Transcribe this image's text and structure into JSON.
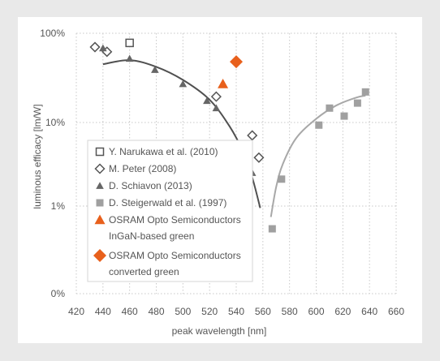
{
  "chart_data": {
    "type": "scatter",
    "xlabel": "peak wavelength [nm]",
    "ylabel": "luminous efficacy [lm/W]",
    "xlim": [
      420,
      660
    ],
    "x_ticks": [
      "420",
      "440",
      "460",
      "480",
      "500",
      "520",
      "540",
      "560",
      "580",
      "600",
      "620",
      "640",
      "660"
    ],
    "y_scale": "log",
    "y_ticks": [
      "0%",
      "1%",
      "10%",
      "100%"
    ],
    "grid": "dotted",
    "legend_position": "lower-left, inside plot",
    "series": [
      {
        "name": "Y. Narukawa et al. (2010)",
        "marker": "open-square",
        "color": "#555555",
        "points": [
          {
            "x": 460,
            "y": 78
          }
        ]
      },
      {
        "name": "M. Peter (2008)",
        "marker": "open-diamond",
        "color": "#555555",
        "points": [
          {
            "x": 434,
            "y": 70
          },
          {
            "x": 443,
            "y": 62
          },
          {
            "x": 525,
            "y": 19.5
          },
          {
            "x": 552,
            "y": 7
          },
          {
            "x": 557,
            "y": 3.8
          }
        ]
      },
      {
        "name": "D. Schiavon (2013)",
        "marker": "filled-triangle",
        "color": "#666666",
        "points": [
          {
            "x": 440,
            "y": 68
          },
          {
            "x": 460,
            "y": 52
          },
          {
            "x": 479,
            "y": 39
          },
          {
            "x": 500,
            "y": 27
          },
          {
            "x": 518,
            "y": 17.5
          },
          {
            "x": 525,
            "y": 14.5
          },
          {
            "x": 546,
            "y": 4.3
          },
          {
            "x": 552,
            "y": 2.5
          }
        ]
      },
      {
        "name": "D. Steigerwald et al. (1997)",
        "marker": "filled-square",
        "color": "#a0a0a0",
        "points": [
          {
            "x": 567,
            "y": 0.55
          },
          {
            "x": 574,
            "y": 2.1
          },
          {
            "x": 602,
            "y": 9.3
          },
          {
            "x": 610,
            "y": 14.5
          },
          {
            "x": 621,
            "y": 11.8
          },
          {
            "x": 631,
            "y": 16.5
          },
          {
            "x": 637,
            "y": 22
          }
        ]
      },
      {
        "name": "OSRAM Opto Semiconductors",
        "name_line2": "InGaN-based green",
        "marker": "filled-triangle",
        "color": "#e8601c",
        "points": [
          {
            "x": 530,
            "y": 27
          }
        ]
      },
      {
        "name": "OSRAM Opto Semiconductors",
        "name_line2": "converted green",
        "marker": "filled-diamond",
        "color": "#e8601c",
        "points": [
          {
            "x": 540,
            "y": 48
          }
        ]
      }
    ],
    "trend_curves": [
      {
        "color": "#505050",
        "points": [
          {
            "x": 440,
            "y": 45
          },
          {
            "x": 460,
            "y": 50
          },
          {
            "x": 480,
            "y": 42
          },
          {
            "x": 500,
            "y": 30
          },
          {
            "x": 520,
            "y": 18
          },
          {
            "x": 535,
            "y": 9
          },
          {
            "x": 545,
            "y": 4.5
          },
          {
            "x": 552,
            "y": 2.2
          },
          {
            "x": 558,
            "y": 0.95
          }
        ]
      },
      {
        "color": "#a8a8a8",
        "points": [
          {
            "x": 566,
            "y": 0.75
          },
          {
            "x": 570,
            "y": 1.7
          },
          {
            "x": 575,
            "y": 3.2
          },
          {
            "x": 585,
            "y": 6.5
          },
          {
            "x": 600,
            "y": 11
          },
          {
            "x": 615,
            "y": 15.5
          },
          {
            "x": 630,
            "y": 19
          },
          {
            "x": 637,
            "y": 20
          }
        ]
      }
    ]
  }
}
